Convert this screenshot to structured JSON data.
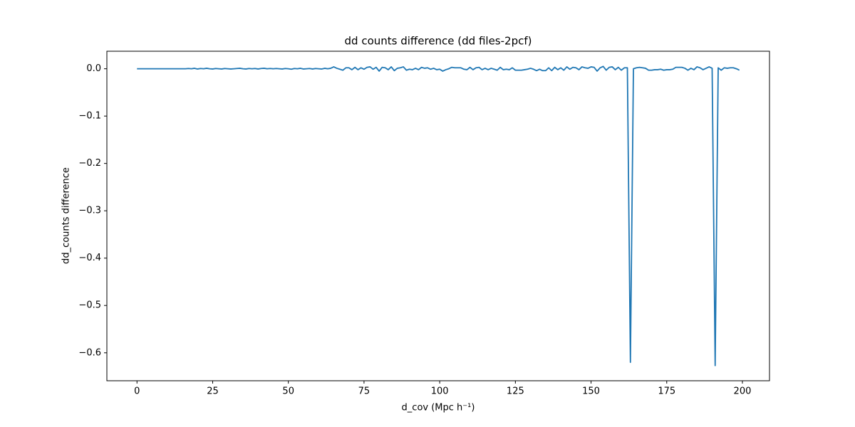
{
  "chart_data": {
    "type": "line",
    "title": "dd counts difference (dd files-2pcf)",
    "x_label": "d_cov (Mpc h⁻¹)",
    "y_label": "dd_counts difference",
    "color": "#1f77b4",
    "x": [
      0,
      1,
      2,
      3,
      4,
      5,
      6,
      7,
      8,
      9,
      10,
      11,
      12,
      13,
      14,
      15,
      16,
      17,
      18,
      19,
      20,
      21,
      22,
      23,
      24,
      25,
      26,
      27,
      28,
      29,
      30,
      31,
      32,
      33,
      34,
      35,
      36,
      37,
      38,
      39,
      40,
      41,
      42,
      43,
      44,
      45,
      46,
      47,
      48,
      49,
      50,
      51,
      52,
      53,
      54,
      55,
      56,
      57,
      58,
      59,
      60,
      61,
      62,
      63,
      64,
      65,
      66,
      67,
      68,
      69,
      70,
      71,
      72,
      73,
      74,
      75,
      76,
      77,
      78,
      79,
      80,
      81,
      82,
      83,
      84,
      85,
      86,
      87,
      88,
      89,
      90,
      91,
      92,
      93,
      94,
      95,
      96,
      97,
      98,
      99,
      100,
      101,
      102,
      103,
      104,
      105,
      106,
      107,
      108,
      109,
      110,
      111,
      112,
      113,
      114,
      115,
      116,
      117,
      118,
      119,
      120,
      121,
      122,
      123,
      124,
      125,
      126,
      127,
      128,
      129,
      130,
      131,
      132,
      133,
      134,
      135,
      136,
      137,
      138,
      139,
      140,
      141,
      142,
      143,
      144,
      145,
      146,
      147,
      148,
      149,
      150,
      151,
      152,
      153,
      154,
      155,
      156,
      157,
      158,
      159,
      160,
      161,
      162,
      163,
      164,
      165,
      166,
      167,
      168,
      169,
      170,
      171,
      172,
      173,
      174,
      175,
      176,
      177,
      178,
      179,
      180,
      181,
      182,
      183,
      184,
      185,
      186,
      187,
      188,
      189,
      190,
      191,
      192,
      193,
      194,
      195,
      196,
      197,
      198,
      199
    ],
    "values": [
      0,
      0,
      0,
      0,
      0,
      0,
      0,
      0,
      0,
      0,
      0,
      0,
      0,
      0,
      0,
      0,
      0,
      0.0005,
      0,
      0.001,
      -0.0005,
      0.0005,
      0,
      0.001,
      0,
      -0.0005,
      0.0005,
      0,
      -0.0005,
      0.0005,
      0,
      -0.0005,
      0,
      0.0005,
      0.001,
      0,
      -0.0005,
      0.0005,
      0,
      0.0005,
      -0.0005,
      0.0005,
      0.001,
      0,
      0.0005,
      0,
      0.0005,
      0,
      -0.0005,
      0.0005,
      0,
      -0.001,
      0.0005,
      0,
      0.001,
      -0.0005,
      0,
      0.0005,
      -0.0005,
      0.0005,
      0,
      -0.0005,
      0.001,
      0,
      0.001,
      0.004,
      0.001,
      -0.001,
      -0.003,
      0.002,
      0.002,
      -0.002,
      0.003,
      -0.002,
      0.002,
      -0.001,
      0.003,
      0.004,
      -0.001,
      0.003,
      -0.005,
      0.003,
      0.002,
      -0.002,
      0.004,
      -0.004,
      0.001,
      0.002,
      0.004,
      -0.003,
      -0.001,
      -0.002,
      0.001,
      -0.002,
      0.003,
      0.001,
      0.002,
      -0.001,
      0.001,
      -0.002,
      -0.001,
      -0.005,
      -0.002,
      0,
      0.003,
      0.002,
      0.002,
      0.002,
      -0.001,
      -0.002,
      0.003,
      -0.002,
      0.002,
      0.003,
      -0.002,
      0.001,
      -0.002,
      0.001,
      -0.001,
      -0.003,
      0.003,
      -0.002,
      -0.001,
      -0.002,
      0.002,
      -0.003,
      -0.003,
      -0.003,
      -0.002,
      -0.001,
      0.001,
      -0.001,
      -0.004,
      -0.001,
      -0.004,
      -0.004,
      0.002,
      -0.004,
      0.003,
      -0.002,
      0.002,
      -0.003,
      0.004,
      -0.001,
      0.003,
      0.002,
      -0.002,
      0.004,
      0.002,
      0.001,
      0.004,
      0.003,
      -0.005,
      0.002,
      0.005,
      -0.003,
      0.003,
      0.004,
      -0.002,
      0.003,
      -0.003,
      0.002,
      0.002,
      -0.62,
      0,
      0.002,
      0.003,
      0.002,
      0.001,
      -0.003,
      -0.003,
      -0.002,
      -0.002,
      -0.001,
      -0.003,
      -0.002,
      -0.002,
      -0.001,
      0.003,
      0.003,
      0.003,
      0.001,
      -0.003,
      0.001,
      -0.002,
      0.004,
      0.002,
      -0.002,
      0.001,
      0.004,
      0.001,
      -0.627,
      0.002,
      -0.003,
      0.002,
      0.001,
      0.002,
      0.002,
      0,
      -0.003
    ],
    "xlim": [
      -9.95,
      208.95
    ],
    "ylim": [
      -0.659,
      0.037
    ],
    "xticks": [
      0,
      25,
      50,
      75,
      100,
      125,
      150,
      175,
      200
    ],
    "yticks": [
      {
        "value": 0,
        "label": "0.0"
      },
      {
        "value": -0.1,
        "label": "−0.1"
      },
      {
        "value": -0.2,
        "label": "−0.2"
      },
      {
        "value": -0.3,
        "label": "−0.3"
      },
      {
        "value": -0.4,
        "label": "−0.4"
      },
      {
        "value": -0.5,
        "label": "−0.5"
      },
      {
        "value": -0.6,
        "label": "−0.6"
      }
    ]
  }
}
